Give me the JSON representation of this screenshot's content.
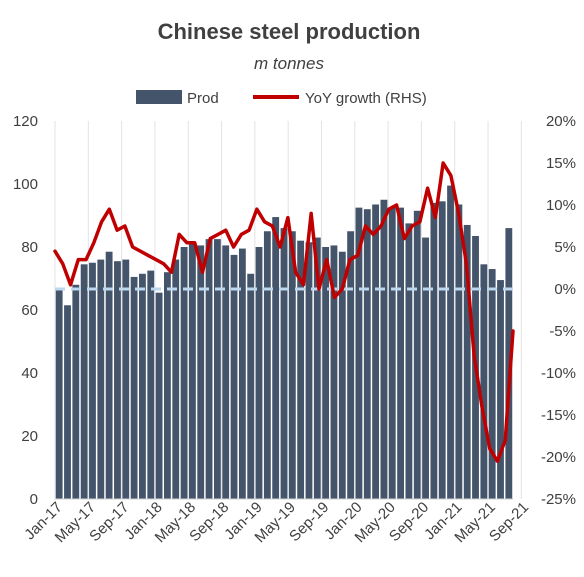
{
  "chart_data": {
    "type": "bar+line",
    "title": "Chinese steel production",
    "subtitle": "m tonnes",
    "legend": {
      "placement": "top",
      "entries": [
        "Prod",
        "YoY growth (RHS)"
      ]
    },
    "x_tick_labels": [
      "Jan-17",
      "May-17",
      "Sep-17",
      "Jan-18",
      "May-18",
      "Sep-18",
      "Jan-19",
      "May-19",
      "Sep-19",
      "Jan-20",
      "May-20",
      "Sep-20",
      "Jan-21",
      "May-21",
      "Sep-21"
    ],
    "left_axis": {
      "min": 0,
      "max": 120,
      "step": 20,
      "tick_labels": [
        "0",
        "20",
        "40",
        "60",
        "80",
        "100",
        "120"
      ]
    },
    "right_axis": {
      "min": -25,
      "max": 20,
      "step": 5,
      "tick_labels": [
        "-25%",
        "-20%",
        "-15%",
        "-10%",
        "-5%",
        "0%",
        "5%",
        "10%",
        "15%",
        "20%"
      ]
    },
    "grid": "vertical",
    "reference_line": {
      "axis": "right",
      "value": 0,
      "style": "dashed",
      "color": "#bdd7ee"
    },
    "colors": {
      "bars": "#44546a",
      "line": "#c00000",
      "text": "#404040",
      "grid": "#e3e3e3"
    },
    "series": [
      {
        "name": "Prod",
        "type": "bar",
        "axis": "left",
        "values": [
          67,
          61.5,
          68,
          74.5,
          75,
          76,
          78.5,
          75.5,
          76,
          70.5,
          71.5,
          72.5,
          65.5,
          72,
          76,
          80,
          81.5,
          80.5,
          82.5,
          82.5,
          80.5,
          77.5,
          79.5,
          71.5,
          80,
          85,
          89.5,
          86,
          85,
          82,
          81.5,
          83,
          80,
          80.5,
          78.5,
          85,
          92.5,
          92,
          93.5,
          95,
          92.5,
          92.5,
          87.5,
          91.5,
          83,
          94,
          94.5,
          99.5,
          93.5,
          87,
          83.5,
          74.5,
          73,
          69.5,
          86
        ]
      },
      {
        "name": "YoY growth (RHS)",
        "type": "line",
        "axis": "right",
        "values": [
          4.5,
          3,
          0.5,
          3.5,
          3.5,
          5.5,
          8,
          9.5,
          7,
          7.5,
          5,
          4.5,
          4,
          3.5,
          3,
          2,
          6.5,
          5.5,
          5.5,
          2,
          6,
          6.5,
          7,
          5,
          6.5,
          7,
          9.5,
          8,
          7.5,
          5,
          8.5,
          2,
          0.5,
          9,
          0,
          3.5,
          -1,
          0,
          3.5,
          4,
          7.5,
          6.5,
          7.5,
          9.5,
          10,
          6,
          7.5,
          8,
          12,
          8.5,
          15,
          13.5,
          9,
          3,
          -8,
          -14,
          -19,
          -20.5,
          -18,
          -5
        ]
      }
    ]
  }
}
